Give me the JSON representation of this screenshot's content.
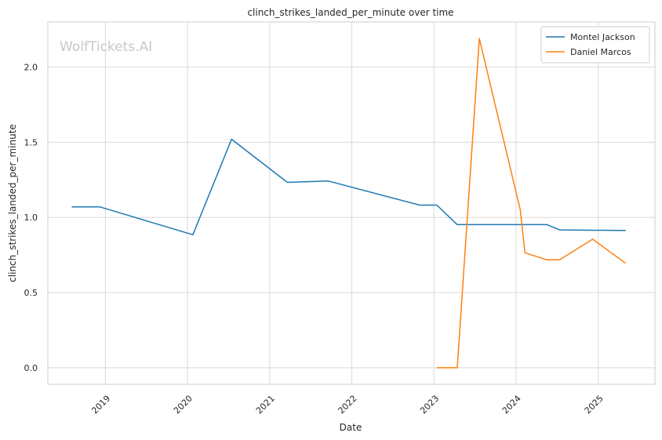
{
  "chart_data": {
    "type": "line",
    "title": "clinch_strikes_landed_per_minute over time",
    "xlabel": "Date",
    "ylabel": "clinch_strikes_landed_per_minute",
    "watermark": "WolfTickets.AI",
    "xlim": [
      "2018-04-20",
      "2025-09-10"
    ],
    "ylim": [
      -0.11,
      2.3
    ],
    "x_ticks": [
      "2019-01-01",
      "2020-01-01",
      "2021-01-01",
      "2022-01-01",
      "2023-01-01",
      "2024-01-01",
      "2025-01-01"
    ],
    "x_tick_labels": [
      "2019",
      "2020",
      "2021",
      "2022",
      "2023",
      "2024",
      "2025"
    ],
    "y_ticks": [
      0.0,
      0.5,
      1.0,
      1.5,
      2.0
    ],
    "y_tick_labels": [
      "0.0",
      "0.5",
      "1.0",
      "1.5",
      "2.0"
    ],
    "grid": true,
    "legend_position": "top-right",
    "series": [
      {
        "name": "Montel Jackson",
        "color": "#1f77b4",
        "x": [
          "2018-08-04",
          "2018-12-08",
          "2020-01-25",
          "2020-07-15",
          "2021-03-20",
          "2021-09-18",
          "2022-10-29",
          "2023-01-14",
          "2023-04-15",
          "2024-05-18",
          "2024-07-13",
          "2025-05-03"
        ],
        "y": [
          1.07,
          1.07,
          0.885,
          1.52,
          1.233,
          1.242,
          1.082,
          1.082,
          0.952,
          0.952,
          0.917,
          0.913
        ]
      },
      {
        "name": "Daniel Marcos",
        "color": "#ff7f0e",
        "x": [
          "2023-01-14",
          "2023-04-15",
          "2023-07-22",
          "2024-01-20",
          "2024-02-10",
          "2024-05-18",
          "2024-07-13",
          "2024-12-07",
          "2025-05-03"
        ],
        "y": [
          0.0,
          0.0,
          2.19,
          1.05,
          0.765,
          0.718,
          0.718,
          0.855,
          0.695
        ]
      }
    ]
  }
}
